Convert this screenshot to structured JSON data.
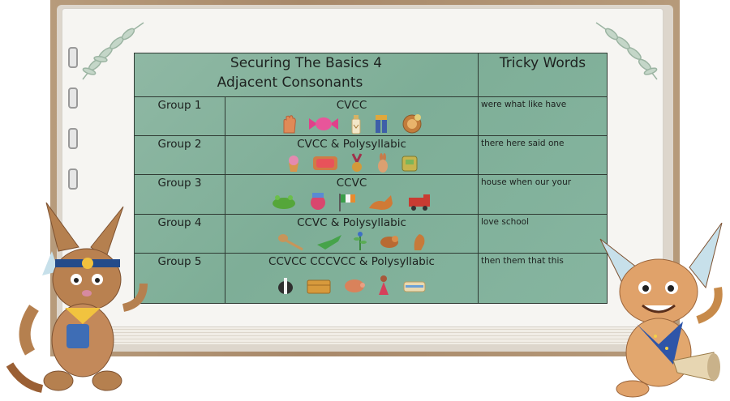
{
  "header": {
    "title_line1": "Securing The Basics 4",
    "title_line2": "Adjacent Consonants",
    "tricky_heading": "Tricky Words"
  },
  "rows": [
    {
      "group": "Group 1",
      "pattern": "CVCC",
      "words": "were what like have"
    },
    {
      "group": "Group 2",
      "pattern": "CVCC & Polysyllabic",
      "words": "there here said one"
    },
    {
      "group": "Group 3",
      "pattern": "CCVC",
      "words": "house when our your"
    },
    {
      "group": "Group 4",
      "pattern": "CCVC & Polysyllabic",
      "words": "love school"
    },
    {
      "group": "Group 5",
      "pattern": "CCVCC CCCVCC & Polysyllabic",
      "words": "then them that this"
    }
  ],
  "colors": {
    "board": "#86b5a0",
    "grid": "#2f3a33",
    "page": "#f6f5f2",
    "wood": "#b09373"
  }
}
